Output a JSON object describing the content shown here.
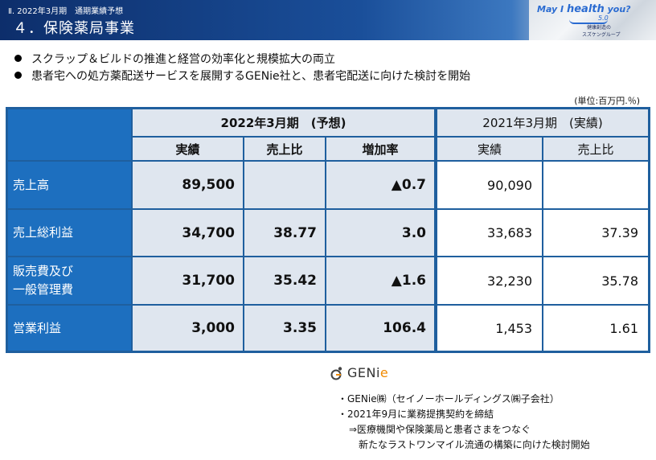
{
  "header": {
    "subtitle": "Ⅱ. 2022年3月期　通期業績予想",
    "title": "４．保険薬局事業",
    "logo": {
      "tagline_pre": "May I",
      "tagline_word": "health",
      "tagline_post": "you?",
      "version": "5.0",
      "line1": "健康創造の",
      "line2": "スズケングループ"
    }
  },
  "bullets": [
    "スクラップ＆ビルドの推進と経営の効率化と規模拡大の両立",
    "患者宅への処方薬配送サービスを展開するGENie社と、患者宅配送に向けた検討を開始"
  ],
  "unit": "(単位:百万円.％)",
  "table": {
    "group_2022": "2022年3月期　(予想)",
    "group_2021": "2021年3月期　(実績)",
    "cols_2022": [
      "実績",
      "売上比",
      "増加率"
    ],
    "cols_2021": [
      "実績",
      "売上比"
    ],
    "rows": [
      {
        "label": "売上高",
        "v": [
          "89,500",
          "",
          "▲0.7"
        ],
        "p": [
          "90,090",
          ""
        ]
      },
      {
        "label": "売上総利益",
        "v": [
          "34,700",
          "38.77",
          "3.0"
        ],
        "p": [
          "33,683",
          "37.39"
        ]
      },
      {
        "label": "販売費及び\n一般管理費",
        "v": [
          "31,700",
          "35.42",
          "▲1.6"
        ],
        "p": [
          "32,230",
          "35.78"
        ]
      },
      {
        "label": "営業利益",
        "v": [
          "3,000",
          "3.35",
          "106.4"
        ],
        "p": [
          "1,453",
          "1.61"
        ]
      }
    ]
  },
  "genie": {
    "name_pre": "GENi",
    "name_e": "e",
    "notes": [
      "・GENie㈱（セイノーホールディングス㈱子会社）",
      "・2021年9月に業務提携契約を締結",
      "⇒医療機関や保険薬局と患者さまをつなぐ",
      "新たなラストワンマイル流通の構築に向けた検討開始"
    ]
  },
  "colors": {
    "banner": "#1a4f9a",
    "table_blue": "#1d6fbf",
    "table_light": "#dfe6ef",
    "genie_orange": "#f08a00"
  }
}
